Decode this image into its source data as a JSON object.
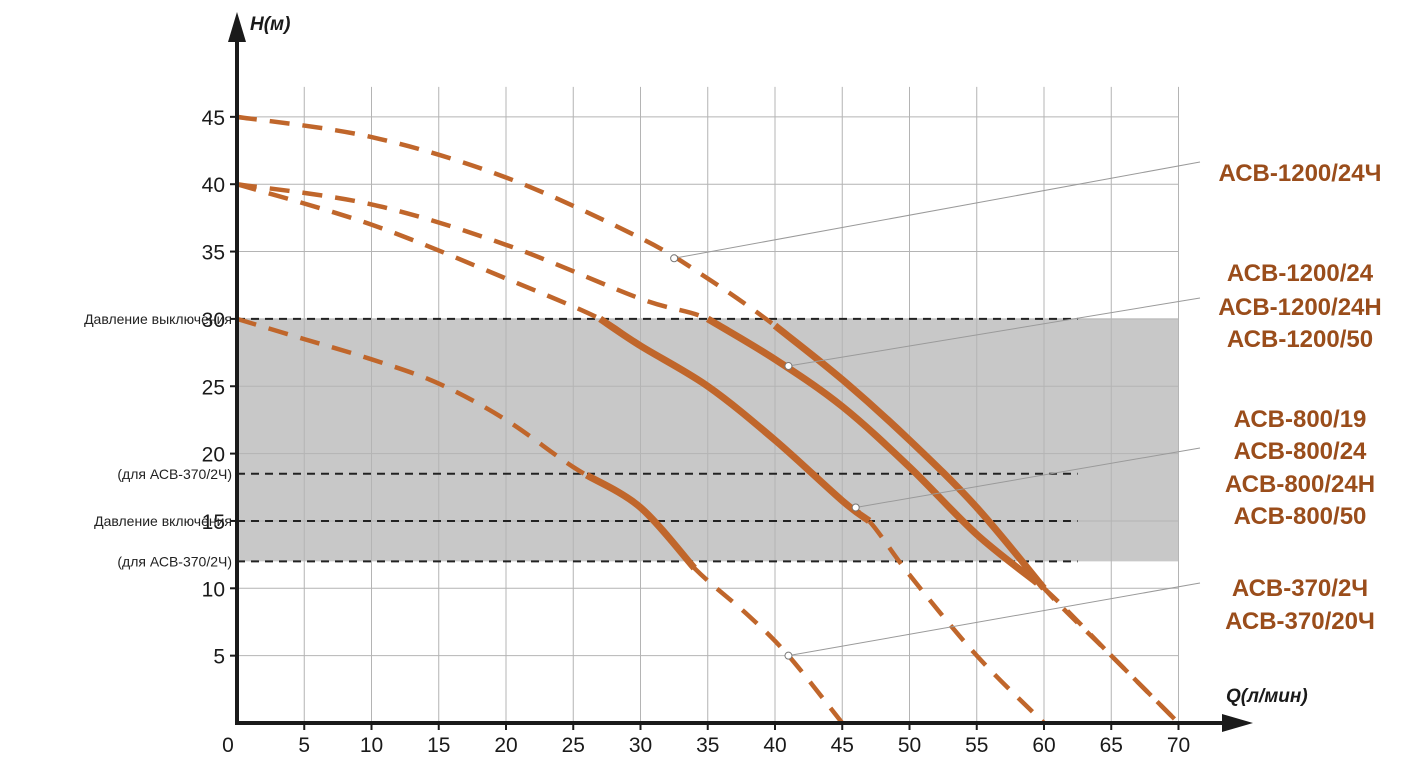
{
  "chart_data": {
    "type": "line",
    "title": "",
    "xlabel": "Q(л/мин)",
    "ylabel": "H(м)",
    "xlim": [
      0,
      70
    ],
    "ylim": [
      0,
      45
    ],
    "x_ticks": [
      "0",
      "5",
      "10",
      "15",
      "20",
      "25",
      "30",
      "35",
      "40",
      "45",
      "50",
      "55",
      "60",
      "65",
      "70"
    ],
    "y_ticks": [
      "5",
      "10",
      "15",
      "20",
      "25",
      "30",
      "35",
      "40",
      "45"
    ],
    "grid": true,
    "line_color": "#c0662b",
    "operating_band": {
      "y_from": 12,
      "y_to": 30,
      "color": "#c8c8c8"
    },
    "reference_lines": [
      {
        "label": "Давление выключения",
        "y": 30
      },
      {
        "label": "(для АСВ-370/2Ч)",
        "y": 18.5
      },
      {
        "label": "Давление включения",
        "y": 15
      },
      {
        "label": "(для АСВ-370/2Ч)",
        "y": 12
      }
    ],
    "series": [
      {
        "labels": [
          "АСВ-1200/24Ч"
        ],
        "points": [
          [
            0,
            45
          ],
          [
            10,
            43.5
          ],
          [
            20,
            40.5
          ],
          [
            30,
            36
          ],
          [
            35,
            33
          ],
          [
            40,
            29.5
          ],
          [
            45,
            25.5
          ],
          [
            50,
            21
          ],
          [
            55,
            16
          ],
          [
            60,
            10
          ],
          [
            65,
            5
          ],
          [
            70,
            0
          ]
        ],
        "solid_range": [
          40,
          60
        ],
        "callout_point": [
          32.5,
          34.5
        ]
      },
      {
        "labels": [
          "АСВ-1200/24",
          "АСВ-1200/24Н",
          "АСВ-1200/50"
        ],
        "points": [
          [
            0,
            40
          ],
          [
            10,
            38.5
          ],
          [
            20,
            35.5
          ],
          [
            30,
            31.5
          ],
          [
            35,
            30
          ],
          [
            40,
            27
          ],
          [
            45,
            23.5
          ],
          [
            50,
            19
          ],
          [
            55,
            14
          ],
          [
            60,
            10
          ],
          [
            65,
            5
          ],
          [
            70,
            0
          ]
        ],
        "solid_range": [
          35,
          59.5
        ],
        "callout_point": [
          41,
          26.5
        ]
      },
      {
        "labels": [
          "АСВ-800/19",
          "АСВ-800/24",
          "АСВ-800/24Н",
          "АСВ-800/50"
        ],
        "points": [
          [
            0,
            40
          ],
          [
            10,
            37
          ],
          [
            20,
            33
          ],
          [
            27,
            30
          ],
          [
            30,
            28
          ],
          [
            35,
            25
          ],
          [
            40,
            21
          ],
          [
            45,
            16.5
          ],
          [
            47,
            15
          ],
          [
            50,
            11
          ],
          [
            55,
            5
          ],
          [
            60,
            0
          ]
        ],
        "solid_range": [
          27,
          47
        ],
        "callout_point": [
          46,
          16
        ]
      },
      {
        "labels": [
          "АСВ-370/2Ч",
          "АСВ-370/20Ч"
        ],
        "points": [
          [
            0,
            30
          ],
          [
            5,
            28.5
          ],
          [
            10,
            27
          ],
          [
            15,
            25.2
          ],
          [
            20,
            22.5
          ],
          [
            25,
            19
          ],
          [
            30,
            16
          ],
          [
            34,
            11.5
          ],
          [
            38,
            8
          ],
          [
            41,
            5
          ],
          [
            45,
            0
          ]
        ],
        "solid_range": [
          26,
          34
        ],
        "callout_point": [
          41,
          5
        ]
      }
    ]
  }
}
